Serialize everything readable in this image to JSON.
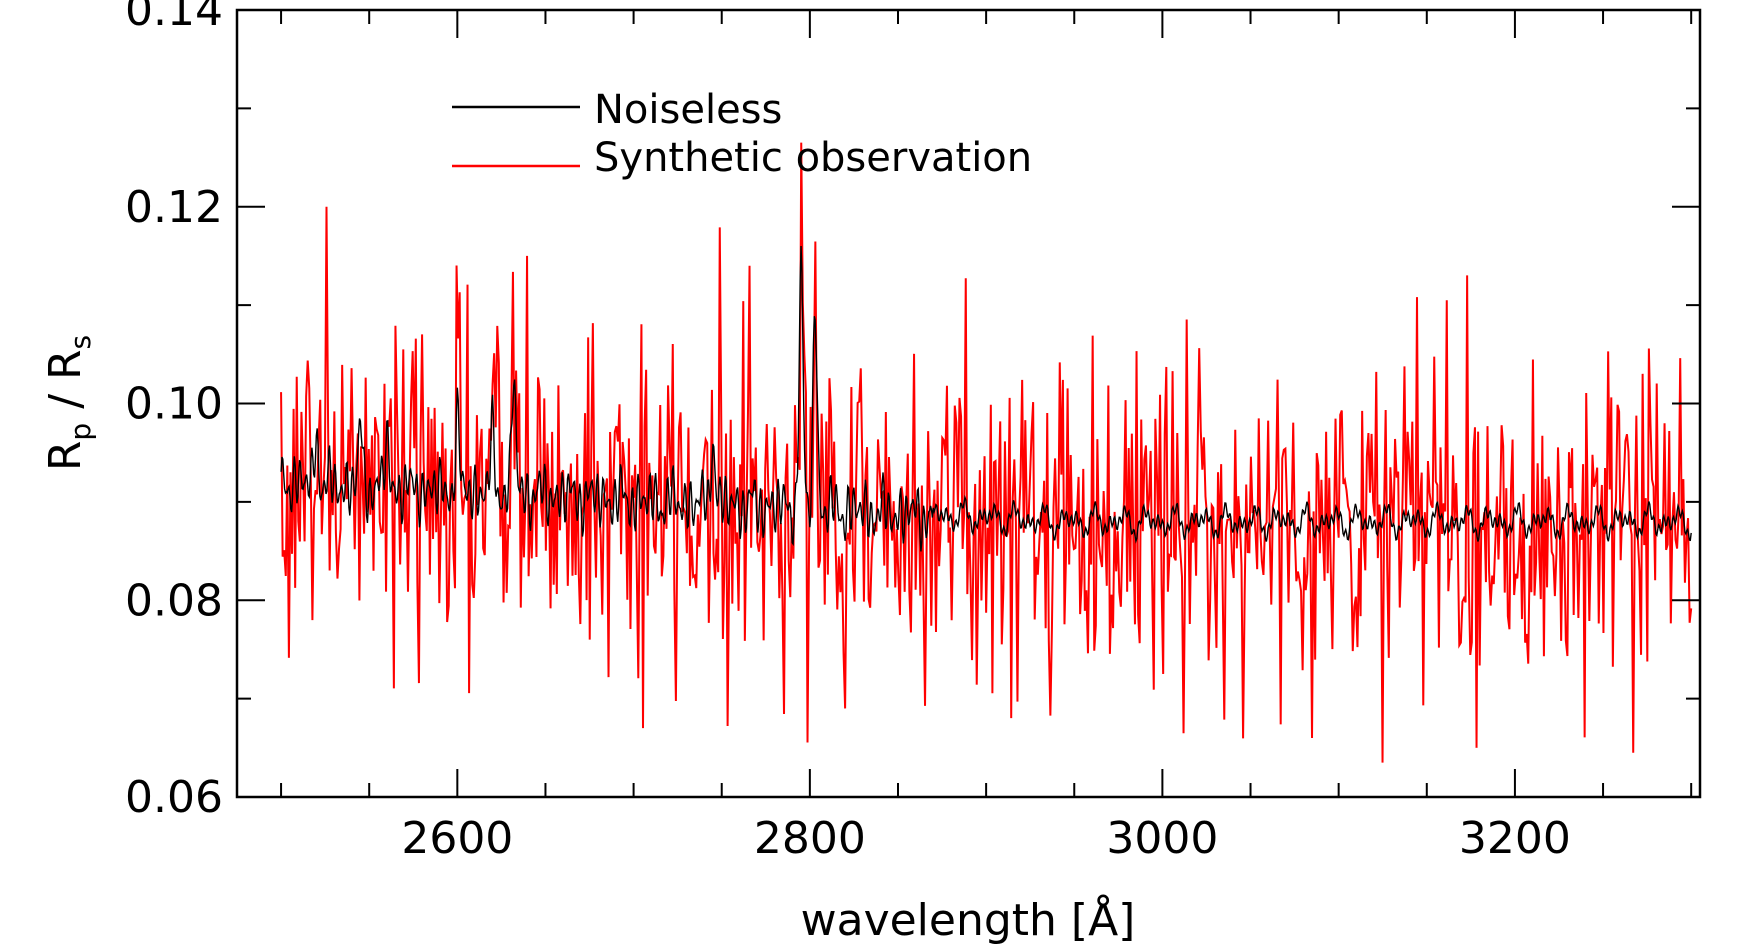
{
  "chart_data": {
    "type": "line",
    "xlabel": "wavelength [Å]",
    "ylabel_main": "R",
    "ylabel_sub1": "p",
    "ylabel_sep": " / R",
    "ylabel_sub2": "s",
    "xlim": [
      2475,
      3305
    ],
    "ylim": [
      0.06,
      0.14
    ],
    "x_ticks": [
      2600,
      2800,
      3000,
      3200
    ],
    "x_tick_labels": [
      "2600",
      "2800",
      "3000",
      "3200"
    ],
    "x_minor_step": 50,
    "y_ticks": [
      0.06,
      0.08,
      0.1,
      0.12,
      0.14
    ],
    "y_tick_labels": [
      "0.06",
      "0.08",
      "0.10",
      "0.12",
      "0.14"
    ],
    "y_minor_step": 0.01,
    "grid": false,
    "legend_position": "top-left",
    "series": [
      {
        "name": "Noiseless",
        "color": "#000000",
        "x_range": [
          2500,
          3300
        ],
        "baseline_start": 0.092,
        "baseline_end": 0.088,
        "peaks": [
          {
            "x": 2520,
            "y": 0.097
          },
          {
            "x": 2545,
            "y": 0.098
          },
          {
            "x": 2560,
            "y": 0.097
          },
          {
            "x": 2600,
            "y": 0.099
          },
          {
            "x": 2620,
            "y": 0.098
          },
          {
            "x": 2632,
            "y": 0.104
          },
          {
            "x": 2745,
            "y": 0.099
          },
          {
            "x": 2795,
            "y": 0.116
          },
          {
            "x": 2803,
            "y": 0.113
          },
          {
            "x": 2850,
            "y": 0.092
          }
        ]
      },
      {
        "name": "Synthetic observation",
        "color": "#ff0000",
        "x_range": [
          2500,
          3300
        ],
        "noise_sd": 0.0085,
        "points": 900,
        "extremes": [
          {
            "x": 2526,
            "y": 0.12
          },
          {
            "x": 2640,
            "y": 0.115
          },
          {
            "x": 2766,
            "y": 0.114
          },
          {
            "x": 2705,
            "y": 0.067
          },
          {
            "x": 2820,
            "y": 0.069
          },
          {
            "x": 3085,
            "y": 0.066
          },
          {
            "x": 3125,
            "y": 0.0635
          },
          {
            "x": 3178,
            "y": 0.065
          },
          {
            "x": 3267,
            "y": 0.0645
          },
          {
            "x": 3161,
            "y": 0.1105
          }
        ]
      }
    ]
  }
}
